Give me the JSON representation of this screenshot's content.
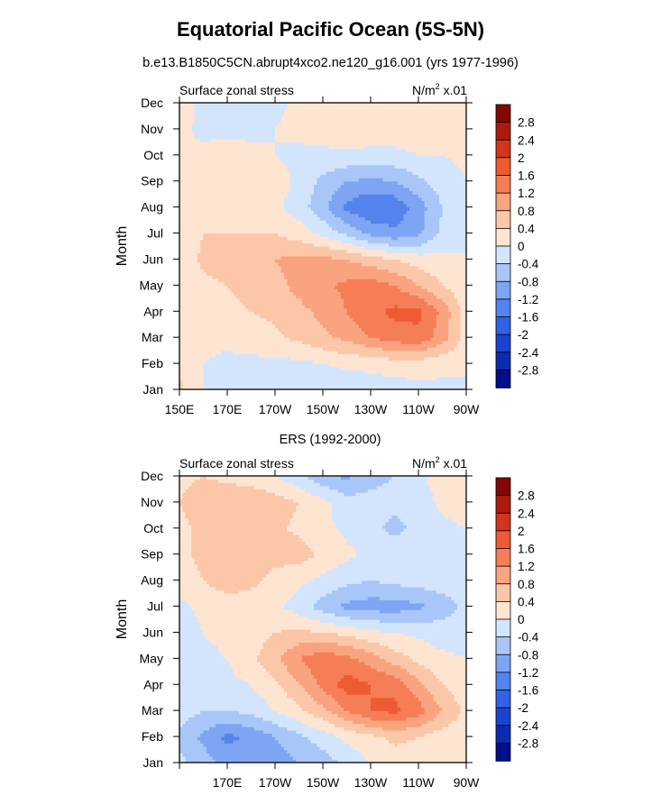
{
  "figure": {
    "title": "Equatorial Pacific Ocean (5S-5N)",
    "subtitle": "b.e13.B1850C5CN.abrupt4xco2.ne120_g16.001 (yrs 1977-1996)"
  },
  "colorbar": {
    "levels": [
      -2.8,
      -2.4,
      -2,
      -1.6,
      -1.2,
      -0.8,
      -0.4,
      0,
      0.4,
      0.8,
      1.2,
      1.6,
      2,
      2.4,
      2.8
    ],
    "labels": [
      "2.8",
      "2.4",
      "2",
      "1.6",
      "1.2",
      "0.8",
      "0.4",
      "0",
      "-0.4",
      "-0.8",
      "-1.2",
      "-1.6",
      "-2",
      "-2.4",
      "-2.8"
    ],
    "colors": [
      "#000e8c",
      "#0a2bb0",
      "#1c43d0",
      "#3361e3",
      "#5583ed",
      "#7ea5f3",
      "#a8c6f8",
      "#d3e5fc",
      "#fde5d2",
      "#fbc7a8",
      "#f9a37f",
      "#f57e56",
      "#ee5b33",
      "#d3351a",
      "#ac1a0c",
      "#800a03"
    ]
  },
  "chart_data": [
    {
      "type": "heatmap",
      "title": "b.e13.B1850C5CN.abrupt4xco2.ne120_g16.001 (yrs 1977-1996)",
      "left_label": "Surface zonal stress",
      "units_prefix": "N/m",
      "units_sup": "2",
      "units_suffix": " x.01",
      "xlabel": "",
      "ylabel": "Month",
      "xlim": [
        150,
        270
      ],
      "x_ticks": [
        150,
        170,
        190,
        210,
        230,
        250,
        270
      ],
      "x_tick_labels": [
        "150E",
        "170E",
        "170W",
        "150W",
        "130W",
        "110W",
        "90W"
      ],
      "y_tick_labels": [
        "Jan",
        "Feb",
        "Mar",
        "Apr",
        "May",
        "Jun",
        "Jul",
        "Aug",
        "Sep",
        "Oct",
        "Nov",
        "Dec"
      ],
      "x": [
        150,
        160,
        170,
        180,
        190,
        200,
        210,
        220,
        230,
        240,
        250,
        260,
        270
      ],
      "months": [
        "Jan",
        "Feb",
        "Mar",
        "Apr",
        "May",
        "Jun",
        "Jul",
        "Aug",
        "Sep",
        "Oct",
        "Nov",
        "Dec"
      ],
      "values": [
        [
          0.5,
          0.0,
          -0.2,
          -0.3,
          -0.4,
          -0.4,
          -0.4,
          -0.3,
          -0.2,
          -0.2,
          -0.1,
          -0.1,
          -0.1
        ],
        [
          0.3,
          0.0,
          -0.1,
          -0.1,
          -0.1,
          -0.1,
          0.0,
          0.1,
          0.1,
          0.2,
          0.2,
          0.1,
          0.1
        ],
        [
          0.2,
          0.1,
          0.1,
          0.2,
          0.3,
          0.5,
          0.7,
          0.9,
          1.2,
          1.4,
          1.5,
          1.0,
          0.2
        ],
        [
          0.2,
          0.2,
          0.3,
          0.4,
          0.5,
          0.7,
          0.9,
          1.2,
          1.5,
          1.7,
          1.7,
          1.1,
          0.2
        ],
        [
          0.2,
          0.3,
          0.4,
          0.5,
          0.7,
          0.9,
          1.1,
          1.3,
          1.4,
          1.2,
          0.8,
          0.4,
          0.1
        ],
        [
          0.1,
          0.5,
          0.6,
          0.7,
          0.8,
          0.9,
          0.9,
          0.8,
          0.6,
          0.4,
          0.2,
          0.1,
          0.0
        ],
        [
          0.1,
          0.4,
          0.4,
          0.4,
          0.4,
          0.2,
          -0.1,
          -0.5,
          -0.9,
          -1.1,
          -0.9,
          -0.3,
          0.0
        ],
        [
          0.1,
          0.2,
          0.3,
          0.2,
          0.1,
          -0.2,
          -0.7,
          -1.3,
          -1.6,
          -1.5,
          -1.0,
          -0.4,
          -0.1
        ],
        [
          0.0,
          0.2,
          0.4,
          0.4,
          0.2,
          -0.1,
          -0.5,
          -0.8,
          -0.9,
          -0.8,
          -0.5,
          -0.2,
          0.0
        ],
        [
          0.0,
          0.1,
          0.2,
          0.1,
          0.0,
          -0.1,
          -0.1,
          -0.1,
          -0.1,
          -0.1,
          0.0,
          0.0,
          0.1
        ],
        [
          0.1,
          -0.1,
          -0.1,
          -0.1,
          0.0,
          0.1,
          0.2,
          0.3,
          0.2,
          0.2,
          0.2,
          0.2,
          0.3
        ],
        [
          0.2,
          -0.1,
          -0.1,
          -0.2,
          -0.1,
          0.1,
          0.1,
          0.2,
          0.2,
          0.1,
          0.1,
          0.2,
          0.2
        ]
      ]
    },
    {
      "type": "heatmap",
      "title": "ERS (1992-2000)",
      "left_label": "Surface zonal stress",
      "units_prefix": "N/m",
      "units_sup": "2",
      "units_suffix": " x.01",
      "xlabel": "",
      "ylabel": "Month",
      "xlim": [
        150,
        270
      ],
      "x_ticks": [
        150,
        170,
        190,
        210,
        230,
        250,
        270
      ],
      "x_tick_labels": [
        "",
        "170E",
        "170W",
        "150W",
        "130W",
        "110W",
        "90W"
      ],
      "y_tick_labels": [
        "Jan",
        "Feb",
        "Mar",
        "Apr",
        "May",
        "Jun",
        "Jul",
        "Aug",
        "Sep",
        "Oct",
        "Nov",
        "Dec"
      ],
      "x": [
        150,
        160,
        170,
        180,
        190,
        200,
        210,
        220,
        230,
        240,
        250,
        260,
        270
      ],
      "months": [
        "Jan",
        "Feb",
        "Mar",
        "Apr",
        "May",
        "Jun",
        "Jul",
        "Aug",
        "Sep",
        "Oct",
        "Nov",
        "Dec"
      ],
      "values": [
        [
          -0.3,
          -0.6,
          -1.0,
          -1.1,
          -1.0,
          -0.8,
          -0.6,
          -0.3,
          0.0,
          0.2,
          0.2,
          0.1,
          0.1
        ],
        [
          -0.5,
          -0.9,
          -1.3,
          -1.1,
          -0.8,
          -0.5,
          -0.2,
          0.1,
          0.3,
          0.5,
          0.4,
          0.2,
          0.1
        ],
        [
          -0.2,
          -0.4,
          -0.4,
          -0.3,
          0.0,
          0.3,
          0.7,
          1.2,
          1.6,
          1.7,
          1.4,
          0.8,
          0.3
        ],
        [
          0.0,
          -0.2,
          -0.1,
          0.0,
          0.3,
          0.8,
          1.3,
          1.8,
          1.6,
          1.5,
          0.9,
          0.4,
          0.1
        ],
        [
          0.0,
          -0.1,
          0.0,
          0.3,
          0.7,
          1.2,
          1.5,
          1.3,
          1.0,
          0.6,
          0.3,
          0.1,
          0.0
        ],
        [
          -0.2,
          0.0,
          0.1,
          0.2,
          0.4,
          0.5,
          0.4,
          0.3,
          0.1,
          0.0,
          -0.1,
          -0.2,
          -0.2
        ],
        [
          -0.1,
          0.1,
          0.2,
          0.2,
          0.1,
          -0.2,
          -0.6,
          -0.9,
          -1.0,
          -1.0,
          -0.9,
          -0.6,
          -0.3
        ],
        [
          0.2,
          0.4,
          0.6,
          0.5,
          0.3,
          0.1,
          -0.1,
          -0.3,
          -0.4,
          -0.3,
          -0.2,
          -0.2,
          -0.1
        ],
        [
          0.3,
          0.5,
          0.6,
          0.6,
          0.5,
          0.6,
          0.3,
          0.1,
          -0.1,
          -0.2,
          -0.1,
          0.0,
          -0.1
        ],
        [
          0.3,
          0.5,
          0.6,
          0.6,
          0.5,
          0.3,
          0.1,
          -0.1,
          -0.3,
          -0.5,
          -0.3,
          -0.1,
          0.0
        ],
        [
          0.4,
          0.6,
          0.7,
          0.7,
          0.6,
          0.4,
          0.1,
          -0.2,
          -0.3,
          -0.3,
          -0.2,
          0.1,
          0.2
        ],
        [
          0.3,
          0.4,
          0.3,
          0.2,
          0.0,
          -0.3,
          -0.7,
          -0.9,
          -0.5,
          -0.4,
          -0.1,
          0.2,
          0.3
        ]
      ]
    }
  ]
}
